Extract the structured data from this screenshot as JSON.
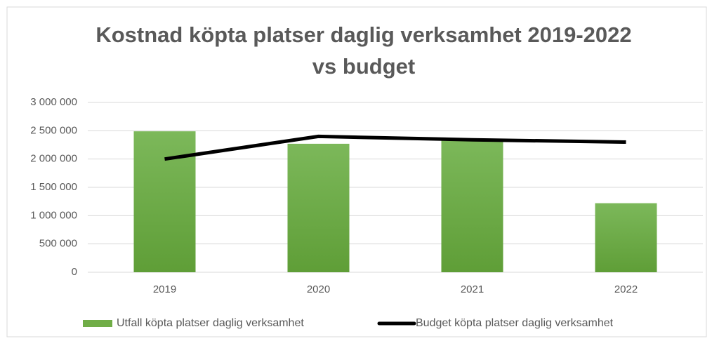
{
  "chart_data": {
    "type": "combo",
    "title": [
      "Kostnad köpta platser daglig verksamhet 2019-2022",
      "vs budget"
    ],
    "categories": [
      "2019",
      "2020",
      "2021",
      "2022"
    ],
    "series": [
      {
        "name": "Utfall köpta platser daglig verksamhet",
        "type": "bar",
        "color": "#70ad47",
        "values": [
          2490000,
          2270000,
          2350000,
          1220000
        ]
      },
      {
        "name": "Budget köpta platser daglig verksamhet",
        "type": "line",
        "color": "#000000",
        "values": [
          2000000,
          2400000,
          2340000,
          2300000
        ]
      }
    ],
    "ylim": [
      0,
      3000000
    ],
    "yticks": [
      0,
      {
        "value": 500000,
        "label": "500 000"
      },
      {
        "value": 1000000,
        "label": "1 000 000"
      },
      {
        "value": 1500000,
        "label": "1 500 000"
      },
      {
        "value": 2000000,
        "label": "2 000 000"
      },
      {
        "value": 2500000,
        "label": "2 500 000"
      },
      {
        "value": 3000000,
        "label": "3 000 000"
      }
    ],
    "grid": true
  }
}
